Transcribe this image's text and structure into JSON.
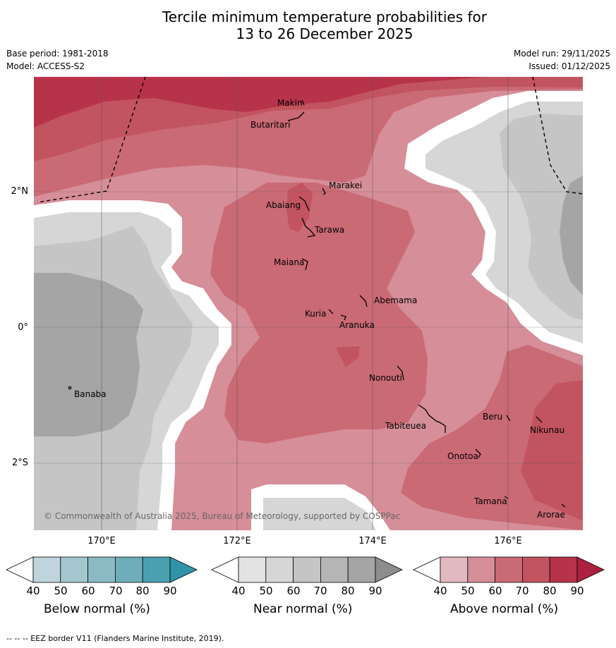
{
  "header": {
    "title_line1": "Tercile minimum temperature probabilities for",
    "title_line2": "13 to 26 December 2025",
    "base_period": "Base period: 1981-2018",
    "model": "Model: ACCESS-S2",
    "model_run": "Model run: 29/11/2025",
    "issued": "Issued: 01/12/2025"
  },
  "axes": {
    "lat_labels": [
      "2°N",
      "0°",
      "2°S"
    ],
    "lon_labels": [
      "170°E",
      "172°E",
      "174°E",
      "176°E"
    ]
  },
  "places": [
    "Makin",
    "Butaritari",
    "Marakei",
    "Abaiang",
    "Tarawa",
    "Maiana",
    "Abemama",
    "Kuria",
    "Aranuka",
    "Nonouti",
    "Banaba",
    "Tabiteuea",
    "Beru",
    "Nikunau",
    "Onotoa",
    "Tamana",
    "Arorae"
  ],
  "copyright": "© Commonwealth of Australia 2025, Bureau of Meteorology, supported by COSPPac",
  "legend": {
    "ticks": [
      "40",
      "50",
      "60",
      "70",
      "80",
      "90"
    ],
    "below": {
      "label": "Below normal (%)",
      "colors": [
        "#bfd4dc",
        "#a4c7cf",
        "#8bbac4",
        "#6eaebb",
        "#4aa0b0",
        "#2f94a7"
      ]
    },
    "near": {
      "label": "Near normal (%)",
      "colors": [
        "#e3e3e3",
        "#d6d6d6",
        "#c5c5c5",
        "#b5b5b5",
        "#a5a5a5",
        "#8d8d8d"
      ]
    },
    "above": {
      "label": "Above normal (%)",
      "colors": [
        "#e2b9c0",
        "#d68e98",
        "#ca6a75",
        "#c2545f",
        "#b7334a",
        "#ae2040"
      ]
    }
  },
  "footnote": "--  --  -- EEZ border V11 (Flanders Marine Institute, 2019)."
}
